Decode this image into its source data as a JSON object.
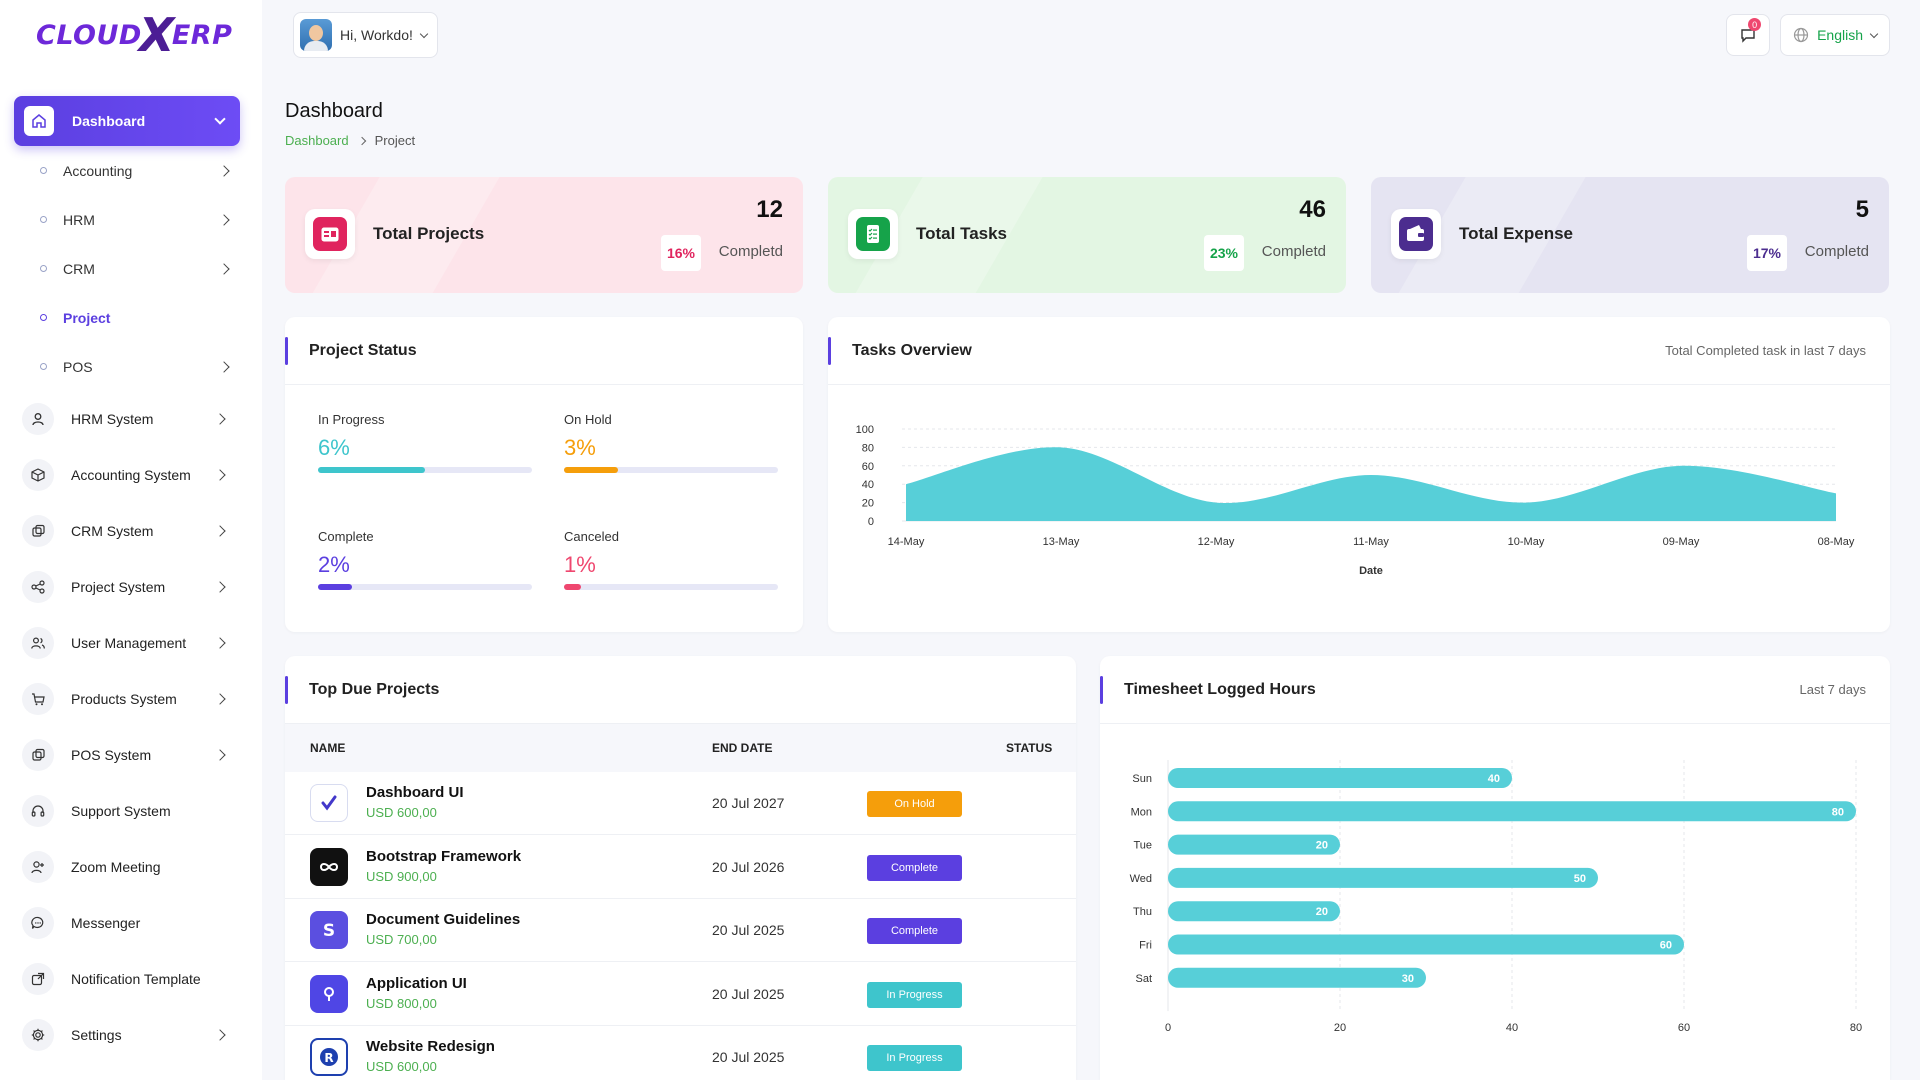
{
  "logo": {
    "left": "CLOUD",
    "x": "X",
    "right": "ERP"
  },
  "user": {
    "greeting": "Hi, Workdo!"
  },
  "notifications": {
    "count": "0"
  },
  "language": {
    "selected": "English"
  },
  "sidebar": {
    "active": {
      "label": "Dashboard",
      "icon": "home-icon"
    },
    "sub_items": [
      {
        "label": "Accounting",
        "has_chevron": true
      },
      {
        "label": "HRM",
        "has_chevron": true
      },
      {
        "label": "CRM",
        "has_chevron": true
      },
      {
        "label": "Project",
        "has_chevron": false
      },
      {
        "label": "POS",
        "has_chevron": true
      }
    ],
    "modules": [
      {
        "label": "HRM System",
        "icon": "user-icon",
        "has_chevron": true
      },
      {
        "label": "Accounting System",
        "icon": "box-icon",
        "has_chevron": true
      },
      {
        "label": "CRM System",
        "icon": "layers-icon",
        "has_chevron": true
      },
      {
        "label": "Project System",
        "icon": "share-icon",
        "has_chevron": true
      },
      {
        "label": "User Management",
        "icon": "users-icon",
        "has_chevron": true
      },
      {
        "label": "Products System",
        "icon": "cart-icon",
        "has_chevron": true
      },
      {
        "label": "POS System",
        "icon": "layers-icon",
        "has_chevron": true
      },
      {
        "label": "Support System",
        "icon": "headset-icon",
        "has_chevron": false
      },
      {
        "label": "Zoom Meeting",
        "icon": "user-plus-icon",
        "has_chevron": false
      },
      {
        "label": "Messenger",
        "icon": "chat-icon",
        "has_chevron": false
      },
      {
        "label": "Notification Template",
        "icon": "external-icon",
        "has_chevron": false
      },
      {
        "label": "Settings",
        "icon": "gear-icon",
        "has_chevron": true
      }
    ]
  },
  "header": {
    "title": "Dashboard",
    "breadcrumb": [
      "Dashboard",
      "Project"
    ]
  },
  "stats": [
    {
      "title": "Total Projects",
      "value": "12",
      "percent": "16%",
      "completed_label": "Completd",
      "bg": "#fde4ea",
      "accent": "#e0245e",
      "icon": "projects-icon"
    },
    {
      "title": "Total Tasks",
      "value": "46",
      "percent": "23%",
      "completed_label": "Completd",
      "bg": "#e3f6e3",
      "accent": "#16a34a",
      "icon": "tasks-icon"
    },
    {
      "title": "Total Expense",
      "value": "5",
      "percent": "17%",
      "completed_label": "Completd",
      "bg": "#e5e4f2",
      "accent": "#4c2d8f",
      "icon": "wallet-icon"
    }
  ],
  "project_status": {
    "title": "Project Status",
    "items": [
      {
        "label": "In Progress",
        "value": "6%",
        "fraction": 0.5,
        "color": "#3ec5cc"
      },
      {
        "label": "On Hold",
        "value": "3%",
        "fraction": 0.25,
        "color": "#f59e0b"
      },
      {
        "label": "Complete",
        "value": "2%",
        "fraction": 0.16,
        "color": "#5b3fe0"
      },
      {
        "label": "Canceled",
        "value": "1%",
        "fraction": 0.08,
        "color": "#ef476f"
      }
    ]
  },
  "tasks_overview": {
    "title": "Tasks Overview",
    "subtitle": "Total Completed task in last 7 days"
  },
  "timesheet": {
    "title": "Timesheet Logged Hours",
    "subtitle": "Last 7 days"
  },
  "top_due": {
    "title": "Top Due Projects",
    "columns": [
      "NAME",
      "END DATE",
      "STATUS"
    ],
    "rows": [
      {
        "name": "Dashboard UI",
        "price": "USD 600,00",
        "end_date": "20 Jul 2027",
        "status": "On Hold",
        "status_color": "#f59e0b",
        "icon": "dashboard-ui-icon"
      },
      {
        "name": "Bootstrap Framework",
        "price": "USD 900,00",
        "end_date": "20 Jul 2026",
        "status": "Complete",
        "status_color": "#5b3fe0",
        "icon": "bootstrap-icon"
      },
      {
        "name": "Document Guidelines",
        "price": "USD 700,00",
        "end_date": "20 Jul 2025",
        "status": "Complete",
        "status_color": "#5b3fe0",
        "icon": "document-icon"
      },
      {
        "name": "Application UI",
        "price": "USD 800,00",
        "end_date": "20 Jul 2025",
        "status": "In Progress",
        "status_color": "#3ec5cc",
        "icon": "application-icon"
      },
      {
        "name": "Website Redesign",
        "price": "USD 600,00",
        "end_date": "20 Jul 2025",
        "status": "In Progress",
        "status_color": "#3ec5cc",
        "icon": "website-icon"
      }
    ]
  },
  "chart_data": [
    {
      "type": "area",
      "x": [
        "14-May",
        "13-May",
        "12-May",
        "11-May",
        "10-May",
        "09-May",
        "08-May"
      ],
      "values": [
        40,
        80,
        20,
        50,
        20,
        60,
        30
      ],
      "xlabel": "Date",
      "ylim": [
        0,
        100
      ],
      "yticks": [
        0,
        20,
        40,
        60,
        80,
        100
      ],
      "color": "#57cfd8"
    },
    {
      "type": "bar",
      "orientation": "horizontal",
      "categories": [
        "Sun",
        "Mon",
        "Tue",
        "Wed",
        "Thu",
        "Fri",
        "Sat"
      ],
      "values": [
        40,
        80,
        20,
        50,
        20,
        60,
        30
      ],
      "xlim": [
        0,
        80
      ],
      "xticks": [
        0,
        20,
        40,
        60,
        80
      ],
      "color": "#57cfd8"
    }
  ]
}
